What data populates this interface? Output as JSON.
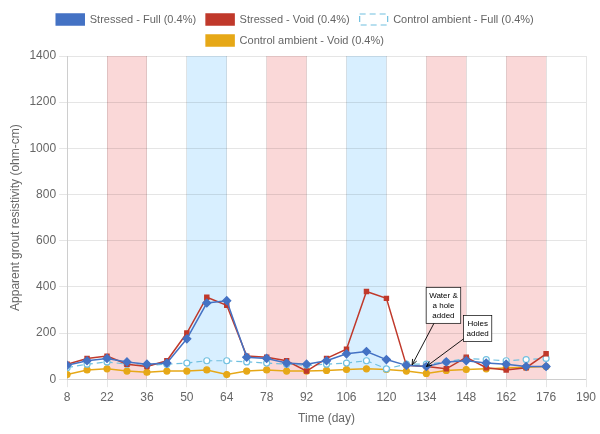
{
  "chart_data": {
    "type": "line",
    "xlabel": "Time (day)",
    "ylabel": "Apparent grout resistivity (ohm-cm)",
    "x": [
      8,
      15,
      22,
      29,
      36,
      43,
      50,
      57,
      64,
      71,
      78,
      85,
      92,
      99,
      106,
      113,
      120,
      127,
      134,
      141,
      148,
      155,
      162,
      169,
      176
    ],
    "series": [
      {
        "name": "Stressed - Full (0.4%)",
        "color": "#4472c4",
        "marker": "diamond",
        "line_style": "solid",
        "values": [
          60,
          80,
          90,
          75,
          65,
          70,
          175,
          330,
          340,
          95,
          90,
          70,
          65,
          80,
          110,
          120,
          85,
          60,
          55,
          75,
          80,
          70,
          65,
          55,
          55
        ]
      },
      {
        "name": "Stressed - Void (0.4%)",
        "color": "#c0392b",
        "marker": "square",
        "line_style": "solid",
        "values": [
          65,
          90,
          100,
          65,
          55,
          80,
          200,
          355,
          320,
          100,
          95,
          80,
          35,
          90,
          130,
          380,
          350,
          60,
          55,
          45,
          95,
          50,
          40,
          50,
          110
        ]
      },
      {
        "name": "Control ambient - Full (0.4%)",
        "color": "#70c0e0",
        "marker": "open circle",
        "line_style": "dashed",
        "values": [
          50,
          65,
          75,
          65,
          60,
          65,
          70,
          80,
          80,
          75,
          70,
          65,
          60,
          65,
          70,
          80,
          45,
          65,
          65,
          75,
          90,
          85,
          80,
          85,
          90
        ]
      },
      {
        "name": "Control ambient - Void (0.4%)",
        "color": "#e6a817",
        "marker": "circle",
        "line_style": "solid",
        "values": [
          20,
          40,
          45,
          35,
          30,
          35,
          35,
          40,
          20,
          35,
          40,
          35,
          35,
          38,
          42,
          45,
          42,
          35,
          25,
          38,
          42,
          45,
          48,
          52,
          55
        ]
      }
    ],
    "xlim": [
      8,
      190
    ],
    "ylim": [
      0,
      1400
    ],
    "xticks": [
      8,
      22,
      36,
      50,
      64,
      78,
      92,
      106,
      120,
      134,
      148,
      162,
      176,
      190
    ],
    "yticks": [
      0,
      200,
      400,
      600,
      800,
      1000,
      1200,
      1400
    ],
    "grid": true,
    "legend": "top",
    "shaded_regions": [
      {
        "from": 22,
        "to": 36,
        "color": "#f8c8c8"
      },
      {
        "from": 50,
        "to": 64,
        "color": "#c8e8ff"
      },
      {
        "from": 78,
        "to": 92,
        "color": "#f8c8c8"
      },
      {
        "from": 106,
        "to": 120,
        "color": "#c8e8ff"
      },
      {
        "from": 134,
        "to": 148,
        "color": "#f8c8c8"
      },
      {
        "from": 162,
        "to": 176,
        "color": "#f8c8c8"
      }
    ],
    "annotations": [
      {
        "text": "Water &\na hole\nadded",
        "xy": [
          129,
          62
        ],
        "xytext": [
          140,
          320
        ]
      },
      {
        "text": "Holes\nadded",
        "xy": [
          134,
          55
        ],
        "xytext": [
          152,
          220
        ]
      }
    ]
  }
}
